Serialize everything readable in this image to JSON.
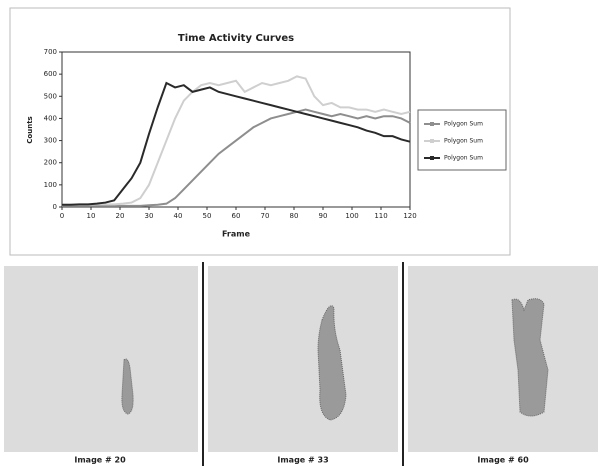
{
  "chart_data": {
    "type": "line",
    "title": "Time Activity Curves",
    "x_label": "Frame",
    "y_label": "Counts",
    "x": [
      0,
      3,
      6,
      9,
      12,
      15,
      18,
      21,
      24,
      27,
      30,
      33,
      36,
      39,
      42,
      45,
      48,
      51,
      54,
      57,
      60,
      63,
      66,
      69,
      72,
      75,
      78,
      81,
      84,
      87,
      90,
      93,
      96,
      99,
      102,
      105,
      108,
      111,
      114,
      117,
      120
    ],
    "series": [
      {
        "name": "Polygon Sum",
        "color": "#8e8e8e",
        "values": [
          5,
          5,
          5,
          5,
          5,
          5,
          5,
          5,
          5,
          5,
          8,
          10,
          15,
          40,
          80,
          120,
          160,
          200,
          240,
          270,
          300,
          330,
          360,
          380,
          400,
          410,
          420,
          430,
          440,
          430,
          420,
          410,
          420,
          410,
          400,
          410,
          400,
          410,
          410,
          400,
          380
        ]
      },
      {
        "name": "Polygon Sum",
        "color": "#cfcfcf",
        "values": [
          10,
          10,
          10,
          10,
          12,
          12,
          12,
          15,
          20,
          40,
          100,
          200,
          300,
          400,
          480,
          520,
          550,
          560,
          550,
          560,
          570,
          520,
          540,
          560,
          550,
          560,
          570,
          590,
          580,
          500,
          460,
          470,
          450,
          450,
          440,
          440,
          430,
          440,
          430,
          420,
          430
        ]
      },
      {
        "name": "Polygon Sum",
        "color": "#2a2a2a",
        "values": [
          10,
          10,
          12,
          12,
          15,
          20,
          30,
          80,
          130,
          200,
          330,
          450,
          560,
          540,
          550,
          520,
          530,
          540,
          520,
          510,
          500,
          490,
          480,
          470,
          460,
          450,
          440,
          430,
          420,
          410,
          400,
          390,
          380,
          370,
          360,
          345,
          335,
          320,
          320,
          305,
          295
        ]
      }
    ],
    "xlim": [
      0,
      120
    ],
    "xticks": [
      0,
      10,
      20,
      30,
      40,
      50,
      60,
      70,
      80,
      90,
      100,
      110,
      120
    ],
    "ylim": [
      0,
      700
    ],
    "yticks": [
      0,
      100,
      200,
      300,
      400,
      500,
      600,
      700
    ],
    "legend": "right"
  },
  "images": [
    {
      "caption": "Image # 20"
    },
    {
      "caption": "Image # 33"
    },
    {
      "caption": "Image # 60"
    }
  ]
}
